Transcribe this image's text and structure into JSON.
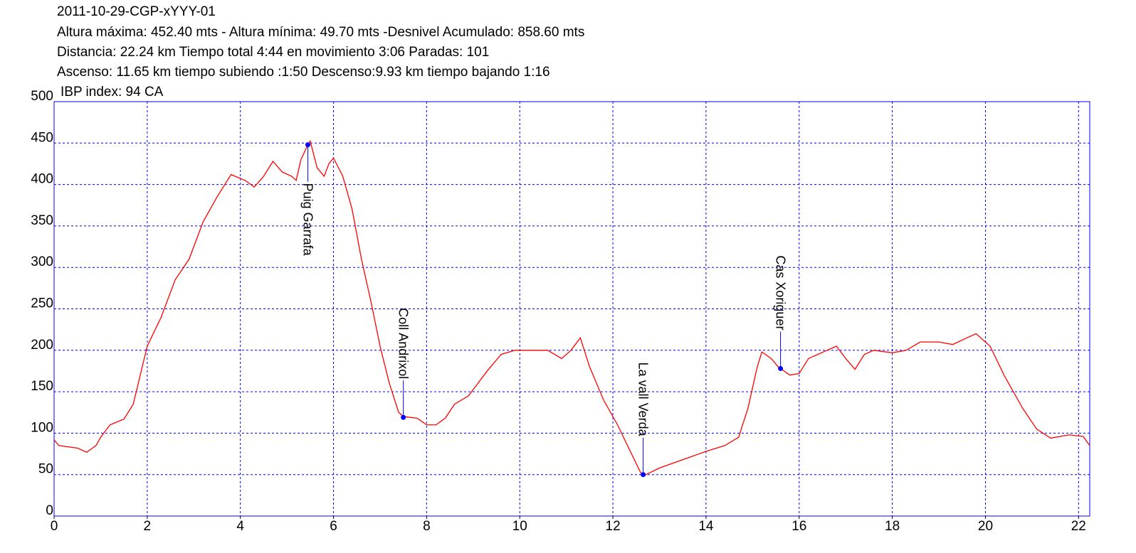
{
  "chart_data": {
    "type": "line",
    "title": "2011-10-29-CGP-xYYY-01",
    "subtitle": [
      "Altura máxima: 452.40 mts - Altura mínima: 49.70 mts -Desnivel Acumulado: 858.60 mts",
      "Distancia: 22.24 km  Tiempo total 4:44  en movimiento 3:06 Paradas: 101",
      "Ascenso: 11.65 km  tiempo subiendo :1:50  Descenso:9.93 km tiempo bajando 1:16",
      "IBP index: 94 CA"
    ],
    "x": [
      0,
      0.1,
      0.5,
      0.7,
      0.9,
      1.0,
      1.2,
      1.5,
      1.7,
      2.0,
      2.3,
      2.6,
      2.9,
      3.2,
      3.5,
      3.8,
      4.1,
      4.3,
      4.5,
      4.7,
      4.9,
      5.1,
      5.2,
      5.3,
      5.45,
      5.5,
      5.65,
      5.8,
      5.9,
      6.0,
      6.2,
      6.4,
      6.6,
      6.8,
      7.0,
      7.2,
      7.4,
      7.5,
      7.8,
      8.0,
      8.2,
      8.4,
      8.6,
      8.9,
      9.3,
      9.6,
      9.9,
      10.3,
      10.6,
      10.9,
      11.1,
      11.3,
      11.5,
      11.8,
      12.1,
      12.4,
      12.6,
      12.7,
      13.0,
      13.5,
      14.0,
      14.4,
      14.7,
      14.9,
      15.1,
      15.2,
      15.4,
      15.55,
      15.8,
      16.0,
      16.2,
      16.4,
      16.6,
      16.8,
      17.0,
      17.2,
      17.4,
      17.6,
      18.0,
      18.3,
      18.6,
      19.0,
      19.3,
      19.6,
      19.8,
      20.1,
      20.4,
      20.8,
      21.1,
      21.4,
      21.8,
      22.1,
      22.24
    ],
    "series": [
      {
        "color": "#ff0000",
        "values": [
          92,
          85,
          82,
          77,
          85,
          95,
          110,
          117,
          135,
          205,
          240,
          285,
          310,
          355,
          385,
          412,
          405,
          397,
          410,
          428,
          415,
          410,
          405,
          430,
          448,
          452.4,
          420,
          410,
          425,
          432,
          410,
          370,
          310,
          260,
          205,
          160,
          125,
          120,
          118,
          110,
          110,
          118,
          135,
          145,
          175,
          195,
          200,
          200,
          200,
          190,
          200,
          215,
          180,
          140,
          110,
          75,
          52,
          49.7,
          58,
          68,
          78,
          85,
          95,
          130,
          180,
          198,
          190,
          180,
          170,
          172,
          190,
          195,
          200,
          205,
          190,
          177,
          195,
          200,
          197,
          200,
          210,
          210,
          207,
          215,
          220,
          205,
          170,
          130,
          105,
          94,
          98,
          96,
          85
        ]
      }
    ],
    "waypoints": [
      {
        "name": "Puig Garrafa",
        "x": 5.45,
        "y": 448
      },
      {
        "name": "Coll Andrixol",
        "x": 7.5,
        "y": 119
      },
      {
        "name": "La vall Verda",
        "x": 12.65,
        "y": 50
      },
      {
        "name": "Cas Xoriguer",
        "x": 15.6,
        "y": 178
      }
    ],
    "waypoint_color": "#0000ff",
    "xlim": [
      0,
      22.24
    ],
    "ylim": [
      0,
      500
    ],
    "xticks": [
      0,
      2,
      4,
      6,
      8,
      10,
      12,
      14,
      16,
      18,
      20,
      22
    ],
    "yticks": [
      0,
      50,
      100,
      150,
      200,
      250,
      300,
      350,
      400,
      450,
      500
    ],
    "grid": true,
    "grid_color": "#0000ff"
  }
}
